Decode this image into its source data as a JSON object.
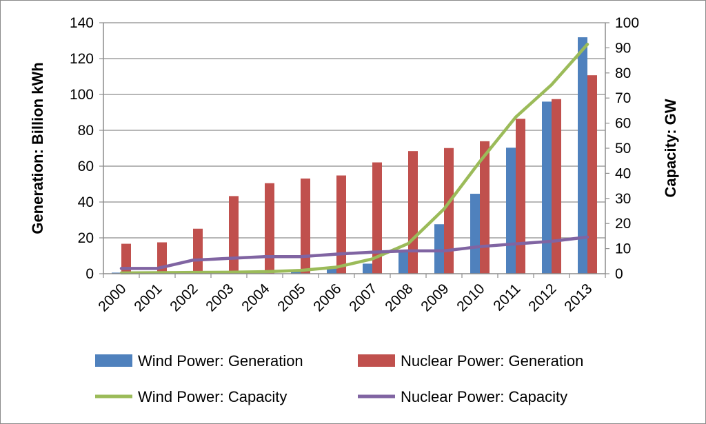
{
  "chart_data": {
    "type": "bar",
    "title": "",
    "categories": [
      "2000",
      "2001",
      "2002",
      "2003",
      "2004",
      "2005",
      "2006",
      "2007",
      "2008",
      "2009",
      "2010",
      "2011",
      "2012",
      "2013"
    ],
    "y_left": {
      "label": "Generation: Billion kWh",
      "range": [
        0,
        140
      ],
      "ticks": [
        0,
        20,
        40,
        60,
        80,
        100,
        120,
        140
      ]
    },
    "y_right": {
      "label": "Capacity: GW",
      "range": [
        0,
        100
      ],
      "ticks": [
        0,
        10,
        20,
        30,
        40,
        50,
        60,
        70,
        80,
        90,
        100
      ]
    },
    "grid": true,
    "legend_position": "bottom",
    "series": [
      {
        "name": "Wind Power: Generation",
        "type": "bar",
        "axis": "left",
        "color": "#4f81bd",
        "values": [
          0.6,
          0.7,
          0.9,
          1.1,
          1.3,
          1.9,
          3.7,
          5.6,
          13.1,
          27.6,
          44.6,
          70.3,
          96.0,
          131.9
        ]
      },
      {
        "name": "Nuclear Power: Generation",
        "type": "bar",
        "axis": "left",
        "color": "#c0504d",
        "values": [
          16.7,
          17.5,
          25.1,
          43.3,
          50.5,
          53.1,
          54.8,
          62.1,
          68.4,
          70.1,
          73.9,
          86.4,
          97.4,
          110.7
        ]
      },
      {
        "name": "Wind Power: Capacity",
        "type": "line",
        "axis": "right",
        "color": "#9bbb59",
        "values": [
          0.3,
          0.4,
          0.5,
          0.6,
          0.8,
          1.3,
          2.6,
          5.9,
          12.0,
          25.8,
          44.7,
          62.4,
          75.3,
          91.4
        ]
      },
      {
        "name": "Nuclear Power: Capacity",
        "type": "line",
        "axis": "right",
        "color": "#8064a2",
        "values": [
          2.1,
          2.1,
          5.4,
          6.1,
          6.8,
          6.8,
          7.8,
          8.6,
          9.1,
          9.1,
          10.8,
          11.9,
          12.9,
          14.6
        ]
      }
    ]
  }
}
